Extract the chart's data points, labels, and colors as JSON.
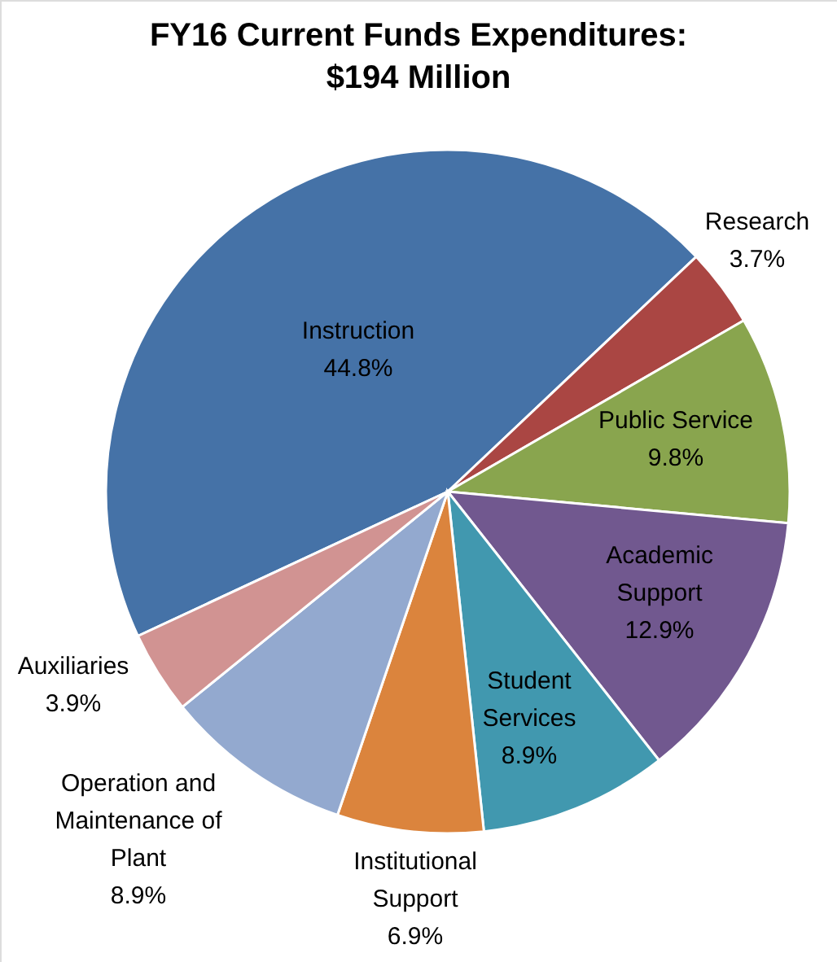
{
  "chart_data": {
    "type": "pie",
    "title": "FY16 Current Funds Expenditures: $194 Million",
    "categories": [
      "Instruction",
      "Research",
      "Public Service",
      "Academic Support",
      "Student Services",
      "Institutional Support",
      "Operation and Maintenance of Plant",
      "Auxiliaries"
    ],
    "values": [
      44.8,
      3.7,
      9.8,
      12.9,
      8.9,
      6.9,
      8.9,
      3.9
    ],
    "colors": [
      "#4572a7",
      "#aa4643",
      "#89a54e",
      "#71588f",
      "#4198af",
      "#db843d",
      "#93a9cf",
      "#d19392"
    ],
    "value_labels": [
      "44.8%",
      "3.7%",
      "9.8%",
      "12.9%",
      "8.9%",
      "6.9%",
      "8.9%",
      "3.9%"
    ],
    "legend": false
  }
}
